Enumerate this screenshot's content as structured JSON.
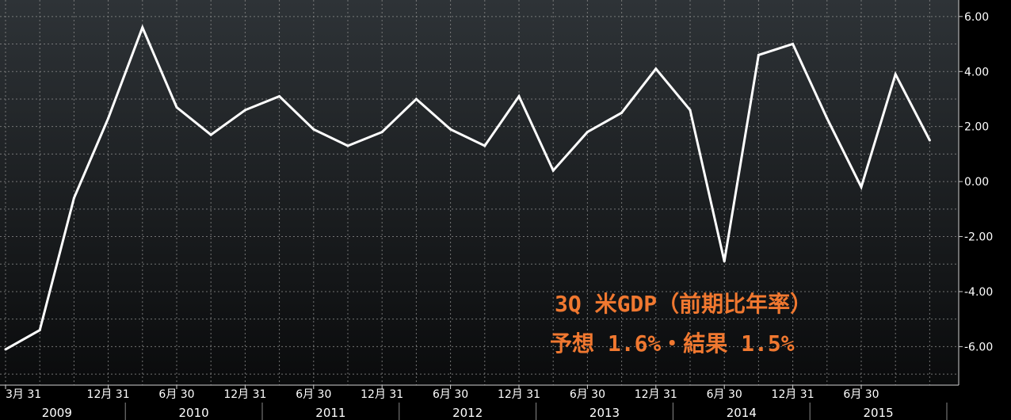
{
  "chart_data": {
    "type": "line",
    "title": "",
    "xlabel": "",
    "ylabel": "",
    "ylim": [
      -7.4,
      6.6
    ],
    "y_ticks": [
      "6.00",
      "4.00",
      "2.00",
      "0.00",
      "-2.00",
      "-4.00",
      "-6.00"
    ],
    "y_tick_values": [
      6,
      4,
      2,
      0,
      -2,
      -4,
      -6
    ],
    "grid": true,
    "legend": "none",
    "x_tick_labels": [
      "3月 31",
      "12月 31",
      "6月 30",
      "12月 31",
      "6月 30",
      "12月 31",
      "6月 30",
      "12月 31",
      "6月 30",
      "12月 31",
      "6月 30",
      "12月 31",
      "6月 30"
    ],
    "x_tick_quarters": [
      0,
      3,
      5,
      7,
      9,
      11,
      13,
      15,
      17,
      19,
      21,
      23,
      25
    ],
    "year_labels": [
      "2009",
      "2010",
      "2011",
      "2012",
      "2013",
      "2014",
      "2015"
    ],
    "year_label_quarters": [
      1.5,
      5.5,
      9.5,
      13.5,
      17.5,
      21.5,
      25.5
    ],
    "series": [
      {
        "quarters": [
          0,
          1,
          2,
          3,
          4,
          5,
          6,
          7,
          8,
          9,
          10,
          11,
          12,
          13,
          14,
          15,
          16,
          17,
          18,
          19,
          20,
          21,
          22,
          23,
          24,
          25,
          26,
          27
        ],
        "values": [
          -6.1,
          -5.4,
          -0.6,
          2.3,
          5.6,
          2.7,
          1.7,
          2.6,
          3.1,
          1.9,
          1.3,
          1.8,
          3.0,
          1.9,
          1.3,
          3.1,
          0.4,
          1.8,
          2.5,
          4.1,
          2.6,
          -2.9,
          4.6,
          5.0,
          2.3,
          -0.2,
          3.9,
          1.5
        ]
      }
    ],
    "colors": {
      "line": "#ffffff",
      "annotation": "#f07830",
      "grid": "#8a8a8a",
      "background_top": "#2e3337",
      "background_bottom": "#0a0b0c"
    }
  },
  "annotation": {
    "line1": "3Q 米GDP（前期比年率）",
    "line2": "予想  1.6%・結果 1.5%"
  }
}
